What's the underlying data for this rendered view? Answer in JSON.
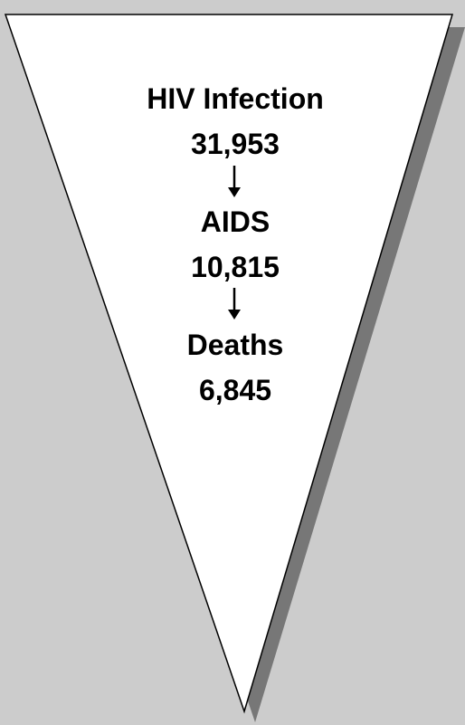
{
  "colors": {
    "background": "#cccccc",
    "funnel_fill": "#ffffff",
    "funnel_stroke": "#000000",
    "shadow": "#777777",
    "text": "#000000"
  },
  "stages": [
    {
      "label": "HIV Infection",
      "value": "31,953"
    },
    {
      "label": "AIDS",
      "value": "10,815"
    },
    {
      "label": "Deaths",
      "value": "6,845"
    }
  ]
}
